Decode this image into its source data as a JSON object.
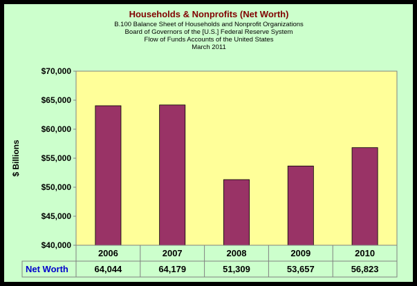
{
  "colors": {
    "background": "#ccffcc",
    "plot_area": "#ffff99",
    "bar": "#993366",
    "title": "#800000",
    "row_header": "#0000cc"
  },
  "chart_data": {
    "type": "bar",
    "title": "Households & Nonprofits (Net Worth)",
    "subtitle_lines": [
      "B.100 Balance Sheet of Households and Nonprofit Organizations",
      "Board of Governors of the [U.S.] Federal Reserve System",
      "Flow of Funds Accounts of the United States",
      "March 2011"
    ],
    "ylabel": "$ Billions",
    "xlabel": "",
    "ylim": [
      40000,
      70000
    ],
    "yticks": [
      40000,
      45000,
      50000,
      55000,
      60000,
      65000,
      70000
    ],
    "ytick_labels": [
      "$40,000",
      "$45,000",
      "$50,000",
      "$55,000",
      "$60,000",
      "$65,000",
      "$70,000"
    ],
    "categories": [
      "2006",
      "2007",
      "2008",
      "2009",
      "2010"
    ],
    "series": [
      {
        "name": "Net Worth",
        "values": [
          64044,
          64179,
          51309,
          53657,
          56823
        ],
        "labels": [
          "64,044",
          "64,179",
          "51,309",
          "53,657",
          "56,823"
        ]
      }
    ],
    "grid": false,
    "legend": "data-table"
  }
}
